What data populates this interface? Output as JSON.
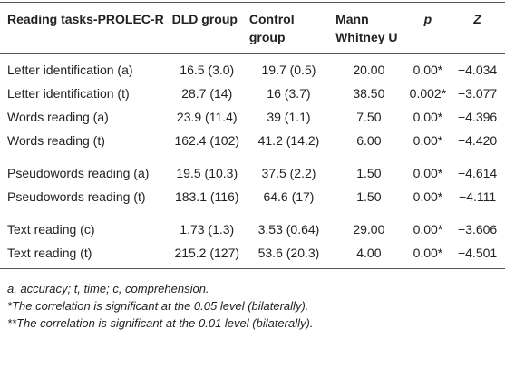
{
  "table": {
    "header": [
      "Reading tasks-PROLEC-R",
      "DLD group",
      "Control group",
      "Mann Whitney U",
      "p",
      "Z"
    ],
    "rows": [
      [
        "Letter identification (a)",
        "16.5 (3.0)",
        "19.7 (0.5)",
        "20.00",
        "0.00*",
        "−4.034"
      ],
      [
        "Letter identification (t)",
        "28.7 (14)",
        "16 (3.7)",
        "38.50",
        "0.002*",
        "−3.077"
      ],
      [
        "Words reading (a)",
        "23.9 (11.4)",
        "39 (1.1)",
        "7.50",
        "0.00*",
        "−4.396"
      ],
      [
        "Words reading (t)",
        "162.4 (102)",
        "41.2 (14.2)",
        "6.00",
        "0.00*",
        "−4.420"
      ],
      [
        "Pseudowords reading (a)",
        "19.5 (10.3)",
        "37.5 (2.2)",
        "1.50",
        "0.00*",
        "−4.614"
      ],
      [
        "Pseudowords reading (t)",
        "183.1 (116)",
        "64.6 (17)",
        "1.50",
        "0.00*",
        "−4.111"
      ],
      [
        "Text reading (c)",
        "1.73 (1.3)",
        "3.53 (0.64)",
        "29.00",
        "0.00*",
        "−3.606"
      ],
      [
        "Text reading (t)",
        "215.2 (127)",
        "53.6 (20.3)",
        "4.00",
        "0.00*",
        "−4.501"
      ]
    ]
  },
  "footnotes": [
    "a, accuracy; t, time; c, comprehension.",
    "*The correlation is significant at the 0.05 level (bilaterally).",
    "**The correlation is significant at the 0.01 level (bilaterally)."
  ]
}
